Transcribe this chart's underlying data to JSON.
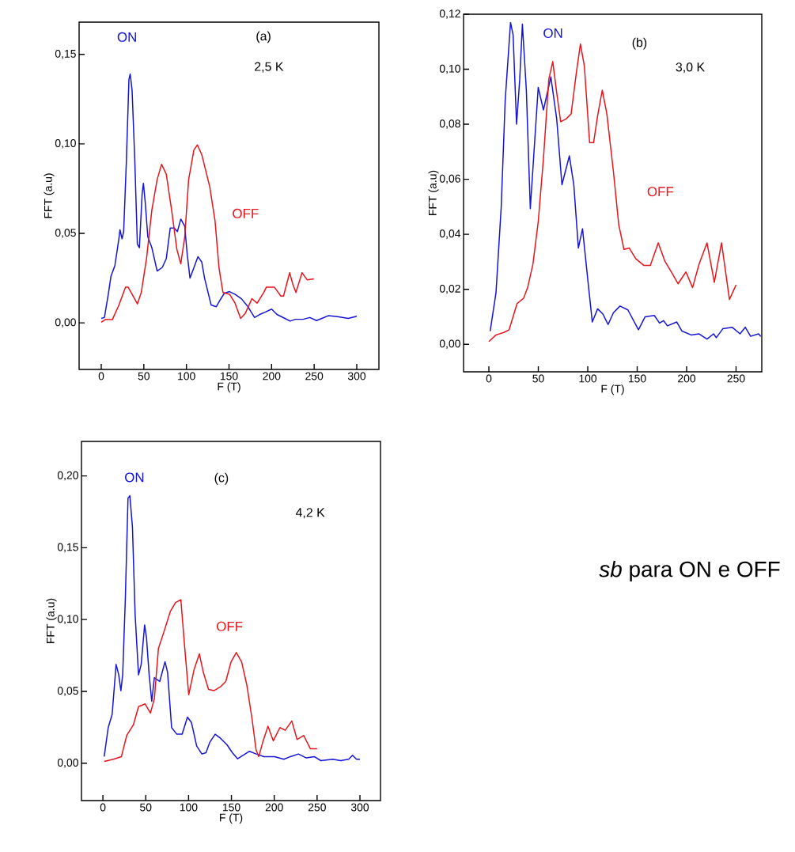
{
  "chart_data": [
    {
      "type": "line",
      "xlabel": "F (T)",
      "ylabel": "FFT (a.u)",
      "annotations": [
        "(a)",
        "2,5 K"
      ],
      "xlim": [
        -26,
        326
      ],
      "ylim": [
        -0.026,
        0.168
      ],
      "xticks": [
        0,
        50,
        100,
        150,
        200,
        250,
        300
      ],
      "yticks": [
        {
          "value": 0,
          "label": "0,00"
        },
        {
          "value": 0.05,
          "label": "0,05"
        },
        {
          "value": 0.1,
          "label": "0,10"
        },
        {
          "value": 0.15,
          "label": "0,15"
        }
      ],
      "series": [
        {
          "name": "ON",
          "color": "#1414d8",
          "x": [
            0,
            3.7,
            8.3,
            11.4,
            16,
            20.7,
            22,
            24.4,
            26.3,
            29.4,
            32.5,
            34,
            36.2,
            39.3,
            42.4,
            44.8,
            48,
            49.5,
            51.7,
            54.7,
            59.4,
            65.6,
            71.7,
            76.4,
            81,
            85.7,
            89.4,
            93.4,
            98,
            101,
            104.2,
            108.9,
            113.5,
            118,
            121.3,
            125.9,
            129,
            135,
            139.8,
            144.4,
            150.6,
            156.8,
            164.6,
            172.3,
            180,
            186,
            192.4,
            200,
            206.3,
            215.6,
            221.8,
            228,
            237,
            245,
            252.7,
            259,
            266.6,
            277.4,
            290,
            300
          ],
          "values": [
            0.0025,
            0.003,
            0.016,
            0.026,
            0.032,
            0.047,
            0.052,
            0.047,
            0.051,
            0.089,
            0.136,
            0.139,
            0.13,
            0.092,
            0.044,
            0.042,
            0.072,
            0.078,
            0.067,
            0.048,
            0.042,
            0.029,
            0.031,
            0.036,
            0.053,
            0.053,
            0.051,
            0.058,
            0.054,
            0.038,
            0.025,
            0.031,
            0.037,
            0.034,
            0.025,
            0.016,
            0.01,
            0.009,
            0.013,
            0.0165,
            0.0175,
            0.016,
            0.0135,
            0.009,
            0.003,
            0.0047,
            0.006,
            0.0077,
            0.0047,
            0.0025,
            0.001,
            0.002,
            0.002,
            0.003,
            0.0013,
            0.0025,
            0.004,
            0.0035,
            0.0025,
            0.0037
          ]
        },
        {
          "name": "OFF",
          "color": "#e8141c",
          "x": [
            0,
            5.3,
            13,
            20.7,
            28.5,
            31.5,
            36.2,
            42.4,
            47,
            53.2,
            59.4,
            65.6,
            70.8,
            76.4,
            82.6,
            88.8,
            93.4,
            98,
            102.6,
            108.8,
            112.9,
            118,
            127.4,
            133.6,
            138.3,
            142.9,
            150.6,
            156.8,
            163.6,
            169.2,
            176.9,
            183,
            190.8,
            193.9,
            203.2,
            210.9,
            214,
            221.2,
            224.9,
            228.6,
            235.7,
            241.9,
            249.6
          ],
          "values": [
            0.0003,
            0.002,
            0.0018,
            0.0099,
            0.02,
            0.02,
            0.016,
            0.0106,
            0.017,
            0.036,
            0.063,
            0.08,
            0.0886,
            0.083,
            0.063,
            0.041,
            0.033,
            0.048,
            0.08,
            0.0967,
            0.0994,
            0.094,
            0.076,
            0.057,
            0.0305,
            0.017,
            0.016,
            0.0113,
            0.0025,
            0.0054,
            0.0135,
            0.011,
            0.017,
            0.02,
            0.02,
            0.015,
            0.015,
            0.028,
            0.0216,
            0.017,
            0.028,
            0.024,
            0.0246
          ]
        }
      ]
    },
    {
      "type": "line",
      "xlabel": "F (T)",
      "ylabel": "FFT (a.u)",
      "annotations": [
        "(b)",
        "3,0 K"
      ],
      "xlim": [
        -25.6,
        276
      ],
      "ylim": [
        -0.01,
        0.12
      ],
      "xticks": [
        0,
        50,
        100,
        150,
        200,
        250
      ],
      "yticks": [
        {
          "value": 0,
          "label": "0,00"
        },
        {
          "value": 0.02,
          "label": "0,02"
        },
        {
          "value": 0.04,
          "label": "0,04"
        },
        {
          "value": 0.06,
          "label": "0,06"
        },
        {
          "value": 0.08,
          "label": "0,08"
        },
        {
          "value": 0.1,
          "label": "0,10"
        },
        {
          "value": 0.12,
          "label": "0,12"
        }
      ],
      "series": [
        {
          "name": "ON",
          "color": "#1414d8",
          "x": [
            1.3,
            7.2,
            12.5,
            16.5,
            21.9,
            24.5,
            28,
            31.2,
            33.9,
            37.9,
            41.9,
            45.9,
            49.9,
            55.2,
            62.7,
            68.6,
            73.9,
            81.4,
            85.9,
            90.5,
            94.7,
            100.6,
            104.6,
            110,
            115.3,
            120.6,
            126,
            132.6,
            140.6,
            151.3,
            158,
            167.3,
            172.6,
            176.6,
            180.6,
            190,
            195.3,
            204.6,
            212.6,
            220.6,
            227.3,
            230,
            236.7,
            246,
            254,
            259.3,
            264.7,
            272.7,
            275
          ],
          "values": [
            0.0048,
            0.0187,
            0.05,
            0.0886,
            0.117,
            0.1125,
            0.08,
            0.0963,
            0.1164,
            0.0924,
            0.0493,
            0.0714,
            0.0934,
            0.0852,
            0.0972,
            0.0819,
            0.058,
            0.0685,
            0.058,
            0.035,
            0.042,
            0.0216,
            0.0081,
            0.0129,
            0.011,
            0.0072,
            0.0115,
            0.0139,
            0.0125,
            0.0053,
            0.01,
            0.0105,
            0.0077,
            0.0086,
            0.0067,
            0.0081,
            0.0048,
            0.0034,
            0.0038,
            0.0019,
            0.0038,
            0.0024,
            0.0057,
            0.0062,
            0.0038,
            0.0062,
            0.0029,
            0.0038,
            0.0029
          ]
        },
        {
          "name": "OFF",
          "color": "#e8141c",
          "x": [
            0,
            7.2,
            15.2,
            20.5,
            28.5,
            35.2,
            39.2,
            44.6,
            49.9,
            55.2,
            60.6,
            64.6,
            68.6,
            72.6,
            78,
            83.2,
            88.6,
            92.6,
            96.6,
            101.9,
            105.9,
            109.9,
            114.7,
            119.3,
            126,
            131.3,
            136.6,
            142,
            148.6,
            156.6,
            163.3,
            171.3,
            178,
            186,
            191.3,
            199.3,
            206,
            212.6,
            220.6,
            228,
            235.3,
            243.3,
            250
          ],
          "values": [
            0.001,
            0.0034,
            0.0043,
            0.0053,
            0.0148,
            0.0168,
            0.0206,
            0.0292,
            0.0445,
            0.0675,
            0.0963,
            0.1028,
            0.0915,
            0.0809,
            0.0819,
            0.0838,
            0.0991,
            0.1092,
            0.1011,
            0.0733,
            0.0733,
            0.0829,
            0.0924,
            0.0838,
            0.0627,
            0.0436,
            0.0345,
            0.035,
            0.0311,
            0.0287,
            0.0287,
            0.0369,
            0.0302,
            0.0254,
            0.022,
            0.0263,
            0.0206,
            0.0292,
            0.0369,
            0.0225,
            0.0369,
            0.0163,
            0.0216
          ]
        }
      ]
    },
    {
      "type": "line",
      "xlabel": "F (T)",
      "ylabel": "FFT (a.u)",
      "annotations": [
        "(c)",
        "4,2 K"
      ],
      "xlim": [
        -25,
        324
      ],
      "ylim": [
        -0.026,
        0.224
      ],
      "xticks": [
        0,
        50,
        100,
        150,
        200,
        250,
        300
      ],
      "yticks": [
        {
          "value": 0,
          "label": "0,00"
        },
        {
          "value": 0.05,
          "label": "0,05"
        },
        {
          "value": 0.1,
          "label": "0,10"
        },
        {
          "value": 0.15,
          "label": "0,15"
        },
        {
          "value": 0.2,
          "label": "0,20"
        }
      ],
      "series": [
        {
          "name": "ON",
          "color": "#1414d8",
          "x": [
            1.5,
            6.2,
            10.8,
            15.4,
            18.5,
            21,
            23.1,
            26.2,
            29.3,
            31.5,
            34.5,
            37.6,
            41.6,
            44.7,
            48.7,
            50.9,
            54,
            57,
            60.1,
            66.3,
            72.5,
            75.5,
            80.2,
            86.3,
            92.5,
            98.7,
            103.3,
            109.5,
            115.6,
            120.3,
            124.9,
            131,
            137.2,
            144.9,
            151.1,
            157.3,
            163.4,
            171.1,
            178.9,
            188.1,
            200.4,
            211.2,
            218.9,
            228.2,
            237.4,
            246.7,
            254.4,
            268.3,
            277.5,
            286.8,
            291.4,
            296,
            300
          ],
          "values": [
            0.0046,
            0.0248,
            0.034,
            0.0688,
            0.0615,
            0.0505,
            0.0615,
            0.1147,
            0.1844,
            0.1862,
            0.1642,
            0.1037,
            0.0615,
            0.0688,
            0.0963,
            0.0872,
            0.0615,
            0.0431,
            0.0596,
            0.0569,
            0.0706,
            0.0633,
            0.0248,
            0.0202,
            0.0202,
            0.0321,
            0.0284,
            0.0119,
            0.0064,
            0.0073,
            0.0147,
            0.0202,
            0.0174,
            0.0128,
            0.0073,
            0.0031,
            0.0055,
            0.0083,
            0.0064,
            0.0046,
            0.0046,
            0.0028,
            0.0046,
            0.0064,
            0.0037,
            0.0046,
            0.0018,
            0.0028,
            0.0018,
            0.0028,
            0.0055,
            0.0028,
            0.0028
          ]
        },
        {
          "name": "OFF",
          "color": "#e8141c",
          "x": [
            1.5,
            12.3,
            21.6,
            27.8,
            35.5,
            41.6,
            49.3,
            55.5,
            60.1,
            64.8,
            70.9,
            78.6,
            84.8,
            91,
            95.6,
            100.2,
            106.4,
            112.6,
            117.2,
            123.3,
            129.5,
            137.2,
            143.4,
            149.6,
            155.7,
            161.9,
            168.1,
            174.2,
            178.8,
            181.9,
            186.6,
            192.7,
            198.9,
            206.6,
            212.8,
            220.5,
            226.6,
            234.4,
            242.1,
            250
          ],
          "values": [
            0.0013,
            0.0028,
            0.0046,
            0.0193,
            0.0266,
            0.0394,
            0.0413,
            0.0349,
            0.045,
            0.0798,
            0.0908,
            0.1055,
            0.1119,
            0.1138,
            0.0798,
            0.0477,
            0.0651,
            0.0761,
            0.0633,
            0.0514,
            0.0505,
            0.0532,
            0.0569,
            0.0706,
            0.0771,
            0.0706,
            0.0541,
            0.0303,
            0.0092,
            0.0046,
            0.0147,
            0.0257,
            0.0156,
            0.0248,
            0.0229,
            0.0294,
            0.0165,
            0.0193,
            0.0101,
            0.0101
          ]
        }
      ]
    },
    {
      "type": "other",
      "title": "*sb* para ON e OFF"
    }
  ]
}
